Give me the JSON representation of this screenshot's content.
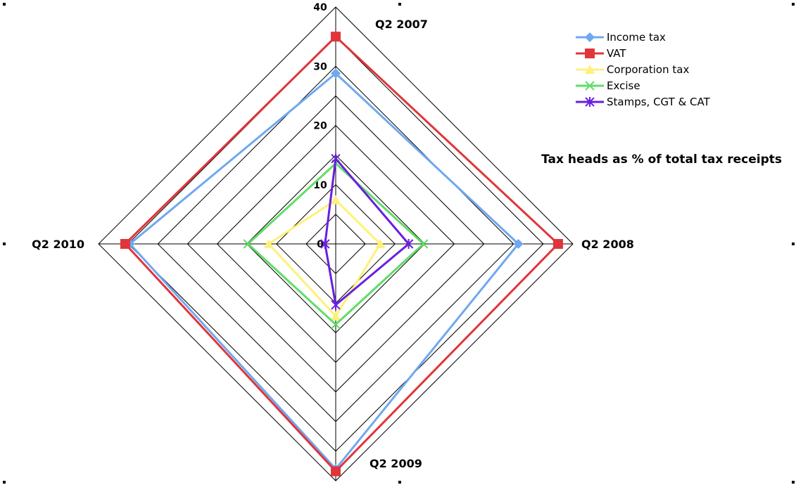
{
  "chart_data": {
    "type": "radar",
    "title": "Tax heads as % of total tax receipts",
    "categories": [
      "Q2 2007",
      "Q2 2008",
      "Q2 2009",
      "Q2 2010"
    ],
    "r_ticks": [
      0,
      10,
      20,
      30,
      40
    ],
    "rlim": [
      0,
      40
    ],
    "legend_position": "top-right",
    "series": [
      {
        "name": "Income tax",
        "color": "#6fa8f0",
        "marker": "diamond",
        "values": [
          28.8,
          30.8,
          38.0,
          34.7
        ]
      },
      {
        "name": "VAT",
        "color": "#e0353a",
        "marker": "square",
        "values": [
          35.0,
          37.5,
          38.4,
          35.5
        ]
      },
      {
        "name": "Corporation tax",
        "color": "#fff07a",
        "marker": "triangle",
        "values": [
          7.4,
          7.5,
          12.2,
          11.3
        ]
      },
      {
        "name": "Excise",
        "color": "#5fdd66",
        "marker": "x",
        "values": [
          13.6,
          14.8,
          13.6,
          14.8
        ]
      },
      {
        "name": "Stamps, CGT & CAT",
        "color": "#6a1ee0",
        "marker": "star",
        "values": [
          14.4,
          12.3,
          10.3,
          1.8
        ]
      }
    ]
  }
}
